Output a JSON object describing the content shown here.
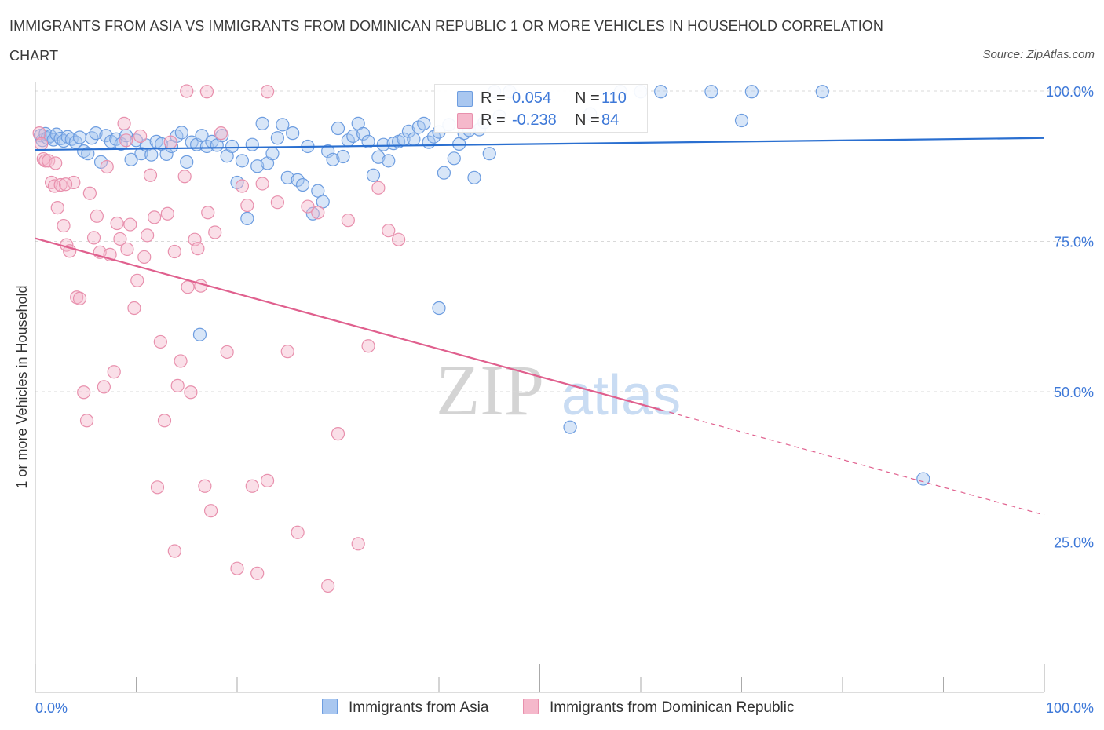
{
  "header": {
    "title": "IMMIGRANTS FROM ASIA VS IMMIGRANTS FROM DOMINICAN REPUBLIC 1 OR MORE VEHICLES IN HOUSEHOLD CORRELATION CHART",
    "source": "Source: ZipAtlas.com"
  },
  "legend": {
    "asia": {
      "r_label": "R =",
      "r_value": "0.054",
      "n_label": "N =",
      "n_value": "110"
    },
    "dom": {
      "r_label": "R =",
      "r_value": "-0.238",
      "n_label": "N =",
      "n_value": "84"
    }
  },
  "bottom_legend": {
    "asia": "Immigrants from Asia",
    "dom": "Immigrants from Dominican Republic"
  },
  "watermark": {
    "zip": "ZIP",
    "atlas": "atlas"
  },
  "colors": {
    "asia_fill": "#a9c7f0",
    "asia_stroke": "#6d9de0",
    "asia_line": "#2a6fd0",
    "dom_fill": "#f5b8cb",
    "dom_stroke": "#e890ad",
    "dom_line": "#e0608e",
    "axis_text": "#3d78d8",
    "grid": "#d9d9d9"
  },
  "chart_data": {
    "type": "scatter",
    "title": "IMMIGRANTS FROM ASIA VS IMMIGRANTS FROM DOMINICAN REPUBLIC 1 OR MORE VEHICLES IN HOUSEHOLD CORRELATION CHART",
    "xlabel": "",
    "ylabel": "1 or more Vehicles in Household",
    "xlim": [
      0,
      100
    ],
    "ylim": [
      0,
      100
    ],
    "x_tick_labels": [
      "0.0%",
      "100.0%"
    ],
    "y_ticks": [
      25,
      50,
      75,
      100
    ],
    "y_tick_labels": [
      "25.0%",
      "50.0%",
      "75.0%",
      "100.0%"
    ],
    "grid": "horizontal dashed",
    "legend_position": "top-center",
    "series": [
      {
        "name": "Immigrants from Asia",
        "r": 0.054,
        "n": 110,
        "trend": {
          "x": [
            0,
            100
          ],
          "y": [
            90.2,
            92.2
          ],
          "dashed_from": null
        },
        "points": [
          [
            0.5,
            92.6
          ],
          [
            0.7,
            91.8
          ],
          [
            1.0,
            92.9
          ],
          [
            1.2,
            92.2
          ],
          [
            1.5,
            92.5
          ],
          [
            1.8,
            91.9
          ],
          [
            2.1,
            92.8
          ],
          [
            2.5,
            92.1
          ],
          [
            2.8,
            91.7
          ],
          [
            3.2,
            92.4
          ],
          [
            3.6,
            92.0
          ],
          [
            4.0,
            91.5
          ],
          [
            4.4,
            92.3
          ],
          [
            4.8,
            90.0
          ],
          [
            5.2,
            89.6
          ],
          [
            5.6,
            92.2
          ],
          [
            6.0,
            93.0
          ],
          [
            6.5,
            88.2
          ],
          [
            7.0,
            92.6
          ],
          [
            7.5,
            91.6
          ],
          [
            8.0,
            92.0
          ],
          [
            8.5,
            91.2
          ],
          [
            9.0,
            92.6
          ],
          [
            9.5,
            88.6
          ],
          [
            10.0,
            91.8
          ],
          [
            10.5,
            89.6
          ],
          [
            11.0,
            91.0
          ],
          [
            11.5,
            89.4
          ],
          [
            12.0,
            91.6
          ],
          [
            12.5,
            91.2
          ],
          [
            13.0,
            89.5
          ],
          [
            13.5,
            90.8
          ],
          [
            14.0,
            92.5
          ],
          [
            14.5,
            93.1
          ],
          [
            15.0,
            88.2
          ],
          [
            15.5,
            91.5
          ],
          [
            16.0,
            91.1
          ],
          [
            16.5,
            92.6
          ],
          [
            17.0,
            90.8
          ],
          [
            17.5,
            91.6
          ],
          [
            18.0,
            91.0
          ],
          [
            18.5,
            92.6
          ],
          [
            19.0,
            89.2
          ],
          [
            19.5,
            90.8
          ],
          [
            20.0,
            84.8
          ],
          [
            20.5,
            88.4
          ],
          [
            21.0,
            78.8
          ],
          [
            21.5,
            91.1
          ],
          [
            22.0,
            87.5
          ],
          [
            22.5,
            94.6
          ],
          [
            23.0,
            88.0
          ],
          [
            23.5,
            89.6
          ],
          [
            24.0,
            92.2
          ],
          [
            24.5,
            94.4
          ],
          [
            25.0,
            85.6
          ],
          [
            25.5,
            93.0
          ],
          [
            26.0,
            85.2
          ],
          [
            26.5,
            84.4
          ],
          [
            27.0,
            90.8
          ],
          [
            27.5,
            79.6
          ],
          [
            28.0,
            83.4
          ],
          [
            28.5,
            81.6
          ],
          [
            29.0,
            90.0
          ],
          [
            29.5,
            88.6
          ],
          [
            30.0,
            93.8
          ],
          [
            30.5,
            89.1
          ],
          [
            31.0,
            91.8
          ],
          [
            31.5,
            92.5
          ],
          [
            32.0,
            94.6
          ],
          [
            32.5,
            92.9
          ],
          [
            33.0,
            91.6
          ],
          [
            33.5,
            86.0
          ],
          [
            34.0,
            89.0
          ],
          [
            34.5,
            91.1
          ],
          [
            35.0,
            88.4
          ],
          [
            35.5,
            91.3
          ],
          [
            36.0,
            91.6
          ],
          [
            36.5,
            92.0
          ],
          [
            37.0,
            93.3
          ],
          [
            37.5,
            92.0
          ],
          [
            38.0,
            94.0
          ],
          [
            38.5,
            94.6
          ],
          [
            39.0,
            91.5
          ],
          [
            39.5,
            92.4
          ],
          [
            40.0,
            93.2
          ],
          [
            40.5,
            86.4
          ],
          [
            41.0,
            94.4
          ],
          [
            41.5,
            88.8
          ],
          [
            42.0,
            91.2
          ],
          [
            42.5,
            93.0
          ],
          [
            43.0,
            93.5
          ],
          [
            43.5,
            85.6
          ],
          [
            44.0,
            93.6
          ],
          [
            44.5,
            94.8
          ],
          [
            45.0,
            89.6
          ],
          [
            45.5,
            99.9
          ],
          [
            46.0,
            95.8
          ],
          [
            47.0,
            99.9
          ],
          [
            55.0,
            96.2
          ],
          [
            58.0,
            99.9
          ],
          [
            60.0,
            99.9
          ],
          [
            62.0,
            99.9
          ],
          [
            67.0,
            99.9
          ],
          [
            70.0,
            95.1
          ],
          [
            71.0,
            99.9
          ],
          [
            78.0,
            99.9
          ],
          [
            16.3,
            59.5
          ],
          [
            40.0,
            63.9
          ],
          [
            53.0,
            44.1
          ],
          [
            88.0,
            35.5
          ]
        ]
      },
      {
        "name": "Immigrants from Dominican Republic",
        "r": -0.238,
        "n": 84,
        "trend": {
          "x": [
            0,
            100
          ],
          "y": [
            75.5,
            29.5
          ],
          "dashed_from": 62
        },
        "points": [
          [
            0.4,
            93.0
          ],
          [
            0.6,
            91.2
          ],
          [
            0.8,
            88.7
          ],
          [
            1.0,
            88.4
          ],
          [
            1.3,
            88.4
          ],
          [
            1.6,
            84.8
          ],
          [
            1.9,
            84.2
          ],
          [
            2.2,
            80.6
          ],
          [
            2.5,
            84.4
          ],
          [
            2.8,
            77.6
          ],
          [
            3.1,
            74.4
          ],
          [
            3.4,
            73.4
          ],
          [
            3.8,
            84.8
          ],
          [
            4.1,
            65.7
          ],
          [
            4.4,
            65.5
          ],
          [
            4.8,
            49.9
          ],
          [
            5.1,
            45.2
          ],
          [
            5.4,
            83.0
          ],
          [
            5.8,
            75.6
          ],
          [
            6.1,
            79.2
          ],
          [
            6.4,
            73.2
          ],
          [
            6.8,
            50.8
          ],
          [
            7.1,
            87.4
          ],
          [
            7.4,
            72.8
          ],
          [
            7.8,
            53.3
          ],
          [
            8.1,
            78.0
          ],
          [
            8.4,
            75.4
          ],
          [
            8.8,
            94.6
          ],
          [
            9.1,
            73.7
          ],
          [
            9.4,
            77.8
          ],
          [
            9.8,
            63.9
          ],
          [
            10.1,
            68.5
          ],
          [
            10.4,
            92.5
          ],
          [
            10.8,
            72.4
          ],
          [
            11.1,
            76.0
          ],
          [
            11.4,
            86.0
          ],
          [
            11.8,
            79.0
          ],
          [
            12.1,
            34.1
          ],
          [
            12.4,
            58.3
          ],
          [
            12.8,
            45.2
          ],
          [
            13.1,
            79.6
          ],
          [
            13.4,
            91.5
          ],
          [
            13.8,
            73.3
          ],
          [
            14.1,
            51.0
          ],
          [
            14.4,
            55.1
          ],
          [
            14.8,
            85.8
          ],
          [
            15.1,
            67.4
          ],
          [
            15.4,
            49.9
          ],
          [
            15.8,
            75.3
          ],
          [
            16.1,
            73.8
          ],
          [
            16.4,
            67.6
          ],
          [
            16.8,
            34.3
          ],
          [
            17.1,
            79.8
          ],
          [
            17.4,
            30.2
          ],
          [
            17.8,
            76.5
          ],
          [
            18.4,
            93.0
          ],
          [
            19.0,
            56.6
          ],
          [
            20.0,
            20.6
          ],
          [
            20.5,
            84.2
          ],
          [
            21.0,
            81.0
          ],
          [
            21.5,
            34.3
          ],
          [
            22.0,
            19.8
          ],
          [
            22.5,
            84.6
          ],
          [
            23.0,
            35.2
          ],
          [
            24.0,
            81.5
          ],
          [
            25.0,
            56.7
          ],
          [
            26.0,
            26.6
          ],
          [
            27.0,
            80.8
          ],
          [
            28.0,
            79.8
          ],
          [
            29.0,
            17.7
          ],
          [
            30.0,
            43.0
          ],
          [
            31.0,
            78.5
          ],
          [
            32.0,
            24.7
          ],
          [
            33.0,
            57.6
          ],
          [
            34.0,
            83.9
          ],
          [
            35.0,
            76.8
          ],
          [
            36.0,
            75.3
          ],
          [
            13.8,
            23.5
          ],
          [
            17.0,
            99.9
          ],
          [
            23.0,
            99.9
          ],
          [
            15.0,
            100.0
          ],
          [
            9.0,
            91.8
          ],
          [
            3.0,
            84.5
          ],
          [
            2.0,
            88.0
          ]
        ]
      }
    ]
  }
}
